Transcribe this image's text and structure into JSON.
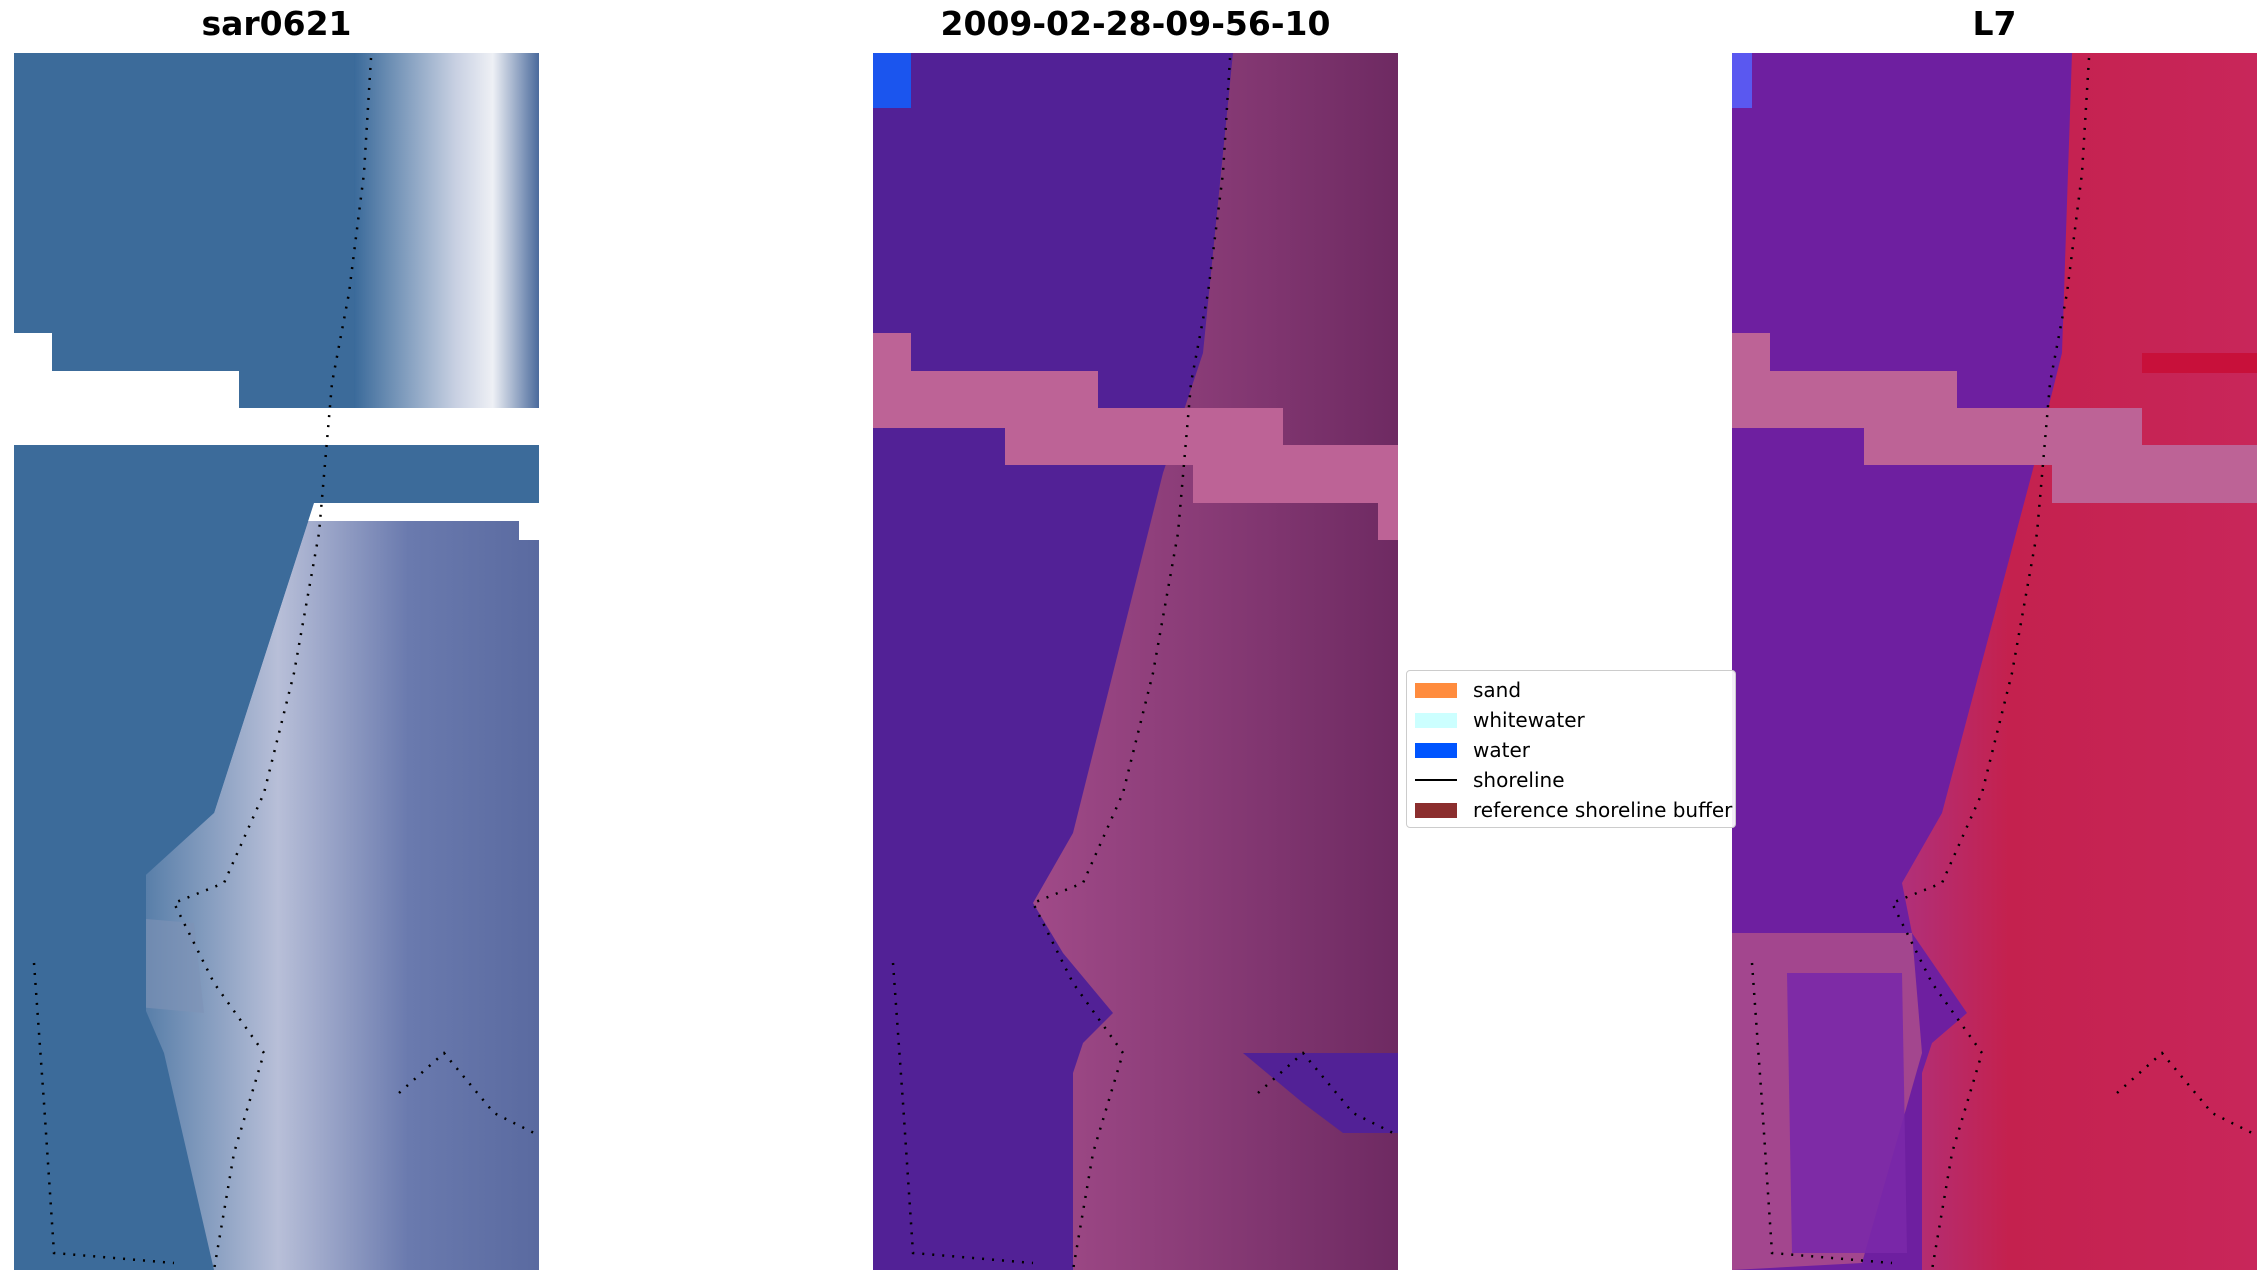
{
  "panels": {
    "left_title": "sar0621",
    "center_title": "2009-02-28-09-56-10",
    "right_title": "L7"
  },
  "legend": {
    "items": [
      {
        "label": "sand",
        "color": "#ff8c3e",
        "kind": "patch"
      },
      {
        "label": "whitewater",
        "color": "#ccffff",
        "kind": "patch"
      },
      {
        "label": "water",
        "color": "#0055ff",
        "kind": "patch"
      },
      {
        "label": "shoreline",
        "color": "#000000",
        "kind": "line"
      },
      {
        "label": "reference shoreline buffer",
        "color": "#8b2e2e",
        "kind": "patch"
      }
    ]
  },
  "colors": {
    "rgb_water": "#3a6a9a",
    "rgb_surf": "#d8dde8",
    "classified_water": "#522196",
    "classified_land": "#8a3a78",
    "mndwi_water": "#6e1fa0",
    "mndwi_land": "#c4214e",
    "nodata_band": "#bd6396"
  }
}
